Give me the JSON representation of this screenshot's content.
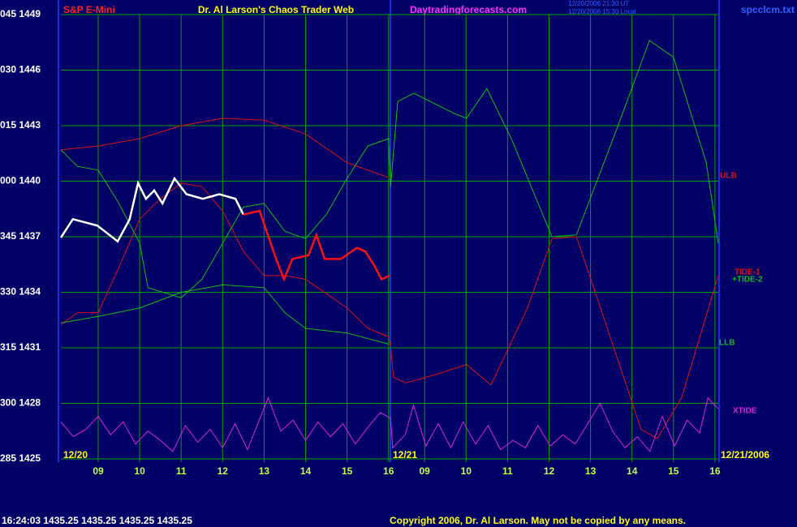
{
  "chart_data": {
    "type": "line",
    "title": "Dr. Al Larson's Chaos Trader Web",
    "instrument": "S&P E-Mini",
    "site": "Daytradingforecasts.com",
    "file": "spcclcm.txt",
    "timestamps": [
      "12/20/2006 21:30 UT",
      "12/20/2006 15:30 Local"
    ],
    "day_labels": [
      "12/20",
      "12/21",
      "12/21/2006"
    ],
    "footer_quote": "16:24:03  1435.25  1435.25  1435.25  1435.25",
    "copyright": "Copyright 2006, Dr. Al Larson. May not be copied by any means.",
    "xlim": [
      8.1,
      23.95
    ],
    "ylim": [
      1425,
      1449
    ],
    "grid": true,
    "xticks": [
      {
        "value": 9,
        "label": "09"
      },
      10,
      11,
      12,
      13,
      14,
      15,
      16,
      {
        "value": 16.87,
        "label": "09"
      },
      {
        "value": 17.87,
        "label": "10"
      },
      {
        "value": 18.87,
        "label": "11"
      },
      {
        "value": 19.87,
        "label": "12"
      },
      {
        "value": 20.87,
        "label": "13"
      },
      {
        "value": 21.87,
        "label": "14"
      },
      {
        "value": 22.87,
        "label": "15"
      },
      {
        "value": 23.87,
        "label": "16"
      }
    ],
    "yticks": [
      {
        "value": 1449,
        "label": "045 1449"
      },
      {
        "value": 1446,
        "label": "030 1446"
      },
      {
        "value": 1443,
        "label": "015 1443"
      },
      {
        "value": 1440,
        "label": "000 1440"
      },
      {
        "value": 1437,
        "label": "345 1437"
      },
      {
        "value": 1434,
        "label": "330 1434"
      },
      {
        "value": 1431,
        "label": "315 1431"
      },
      {
        "value": 1428,
        "label": "300 1428"
      },
      {
        "value": 1425,
        "label": "285 1425"
      }
    ],
    "series": [
      {
        "name": "ULB",
        "color": "#e01010",
        "x": [
          8.1,
          9,
          10,
          11,
          12,
          13,
          14,
          15,
          16
        ],
        "values": [
          1441.7,
          1441.9,
          1442.3,
          1443.0,
          1443.4,
          1443.3,
          1442.55,
          1441.0,
          1440.2
        ]
      },
      {
        "name": "TIDE-1",
        "color": "#e01010",
        "x": [
          8.1,
          8.5,
          9,
          9.5,
          10,
          10.5,
          11,
          11.5,
          12,
          12.5,
          13,
          13.5,
          14,
          15,
          15.5,
          16,
          16.05,
          16.12,
          16.42,
          17.2,
          17.88,
          18.47,
          19.35,
          19.94,
          20.53,
          21.11,
          22.09,
          22.48,
          23.07,
          23.95
        ],
        "values": [
          1432.25,
          1432.9,
          1432.9,
          1435.35,
          1437.95,
          1439.05,
          1439.9,
          1439.7,
          1438.4,
          1436.2,
          1434.9,
          1434.9,
          1434.7,
          1433.15,
          1432.05,
          1431.6,
          1431.05,
          1429.4,
          1429.1,
          1429.6,
          1430.1,
          1429.0,
          1433.15,
          1436.9,
          1437.0,
          1433.15,
          1426.6,
          1426.1,
          1428.33,
          1434.9
        ]
      },
      {
        "name": "+TIDE-2",
        "color": "#10c010",
        "x": [
          8.1,
          8.5,
          9,
          9.5,
          10,
          10.2,
          11,
          11.5,
          12,
          12.5,
          13,
          13.5,
          14,
          14.5,
          15,
          15.5,
          16,
          16.05,
          16.22,
          16.61,
          17.59,
          17.88,
          18.37,
          18.96,
          19.94,
          20.53,
          21.5,
          22.29,
          22.87,
          23.66,
          23.95
        ],
        "values": [
          1441.7,
          1440.8,
          1440.6,
          1438.8,
          1436.65,
          1434.25,
          1433.7,
          1434.7,
          1436.65,
          1438.6,
          1438.8,
          1437.3,
          1436.9,
          1438.2,
          1440.15,
          1441.9,
          1442.3,
          1439.7,
          1444.3,
          1444.75,
          1443.65,
          1443.4,
          1445.0,
          1442.3,
          1437.0,
          1437.1,
          1442.8,
          1447.6,
          1446.7,
          1441.0,
          1436.65
        ]
      },
      {
        "name": "LLB",
        "color": "#10c010",
        "x": [
          8.1,
          9,
          10,
          11,
          12,
          13,
          13.5,
          14,
          15,
          16
        ],
        "values": [
          1432.35,
          1432.7,
          1433.15,
          1434.0,
          1434.4,
          1434.25,
          1432.9,
          1432.05,
          1431.8,
          1431.2
        ]
      },
      {
        "name": "XTIDE",
        "color": "#e020e0",
        "x": [
          8.1,
          8.4,
          8.7,
          9.0,
          9.3,
          9.6,
          9.9,
          10.2,
          10.5,
          10.8,
          11.1,
          11.4,
          11.7,
          12.0,
          12.3,
          12.6,
          12.9,
          13.1,
          13.4,
          13.7,
          14.0,
          14.3,
          14.6,
          14.9,
          15.2,
          15.5,
          15.8,
          16.05,
          16.1,
          16.4,
          16.6,
          16.9,
          17.2,
          17.5,
          17.8,
          18.1,
          18.4,
          18.7,
          19.0,
          19.3,
          19.6,
          19.9,
          20.2,
          20.5,
          20.8,
          21.1,
          21.4,
          21.7,
          22.0,
          22.3,
          22.6,
          22.9,
          23.2,
          23.5,
          23.7,
          23.95
        ],
        "values": [
          1427.0,
          1426.2,
          1426.6,
          1427.3,
          1426.3,
          1427.0,
          1425.8,
          1426.5,
          1426.0,
          1425.4,
          1426.8,
          1425.9,
          1426.6,
          1425.6,
          1426.9,
          1425.5,
          1427.2,
          1428.3,
          1426.5,
          1427.1,
          1426.0,
          1427.0,
          1426.2,
          1426.9,
          1425.8,
          1426.7,
          1427.5,
          1427.2,
          1425.6,
          1426.3,
          1427.9,
          1425.7,
          1426.9,
          1425.6,
          1427.0,
          1425.8,
          1426.8,
          1425.5,
          1426.0,
          1425.6,
          1426.8,
          1425.7,
          1426.3,
          1425.8,
          1426.9,
          1428.0,
          1426.5,
          1425.6,
          1426.2,
          1425.4,
          1427.3,
          1425.7,
          1427.1,
          1426.4,
          1428.3,
          1427.7
        ]
      },
      {
        "color": "#ffffff",
        "x": [
          8.1,
          8.39,
          8.98,
          9.27,
          9.47,
          9.76,
          9.96,
          10.15,
          10.35,
          10.55,
          10.84,
          11.13,
          11.52,
          11.92,
          12.31,
          12.5
        ],
        "values": [
          1436.95,
          1437.95,
          1437.6,
          1437.1,
          1436.75,
          1437.95,
          1439.9,
          1439.05,
          1439.5,
          1438.8,
          1440.15,
          1439.3,
          1439.05,
          1439.3,
          1439.05,
          1438.2
        ]
      },
      {
        "color": "#ff1010",
        "x": [
          12.5,
          12.89,
          13.09,
          13.29,
          13.48,
          13.68,
          14.07,
          14.26,
          14.46,
          14.85,
          15.24,
          15.44,
          15.63,
          15.83,
          16.03
        ],
        "values": [
          1438.2,
          1438.4,
          1437.1,
          1435.8,
          1434.7,
          1435.8,
          1436.0,
          1437.1,
          1435.8,
          1435.8,
          1436.4,
          1436.2,
          1435.55,
          1434.7,
          1434.9
        ]
      }
    ]
  }
}
